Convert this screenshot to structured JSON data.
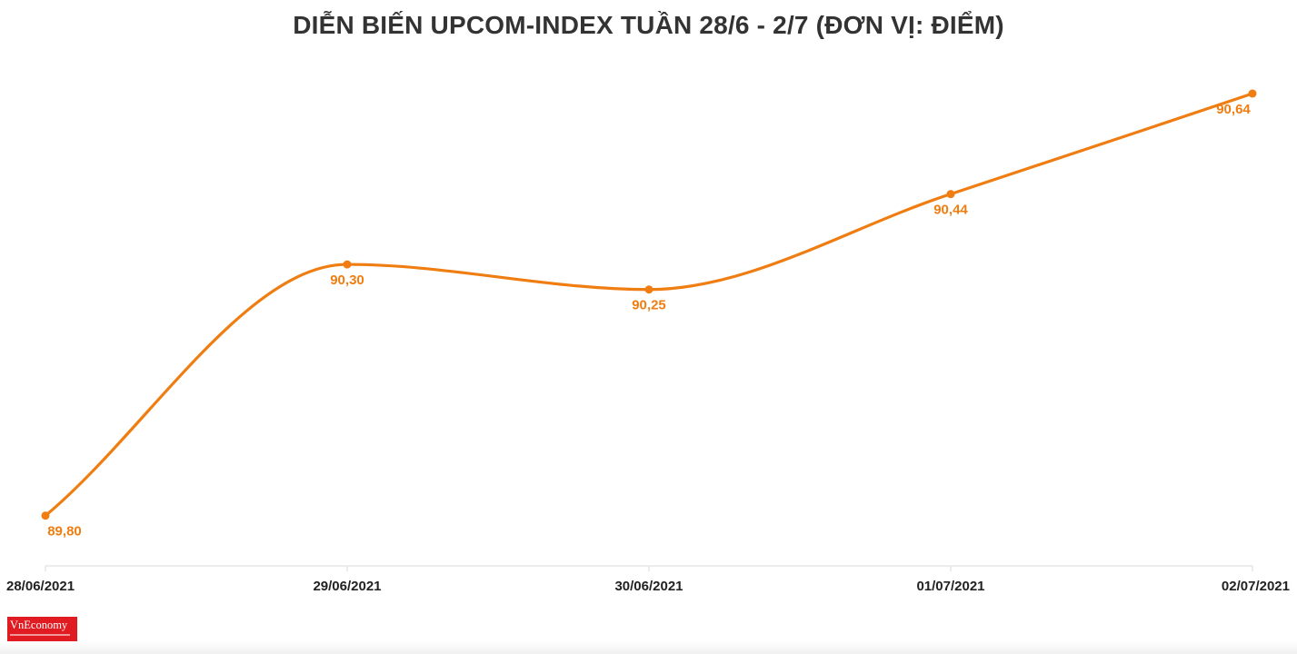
{
  "chart_data": {
    "type": "line",
    "title": "DIỄN BIẾN UPCOM-INDEX TUẦN 28/6 - 2/7 (ĐƠN VỊ: ĐIỂM)",
    "categories": [
      "28/06/2021",
      "29/06/2021",
      "30/06/2021",
      "01/07/2021",
      "02/07/2021"
    ],
    "series": [
      {
        "values": [
          89.8,
          90.3,
          90.25,
          90.44,
          90.64
        ],
        "labels": [
          "89,80",
          "90,30",
          "90,25",
          "90,44",
          "90,64"
        ],
        "color": "#ef7d11"
      }
    ],
    "xlabel": "",
    "ylabel": "",
    "ylim": [
      89.7,
      90.64
    ],
    "grid": false,
    "y_axis_visible": false,
    "smooth": true,
    "markers": true
  },
  "branding": {
    "logo_text": "VnEconomy",
    "logo_color": "#e11b22"
  },
  "colors": {
    "title": "#333333",
    "axis": "#e6e6e6",
    "tick_text": "#222222"
  }
}
